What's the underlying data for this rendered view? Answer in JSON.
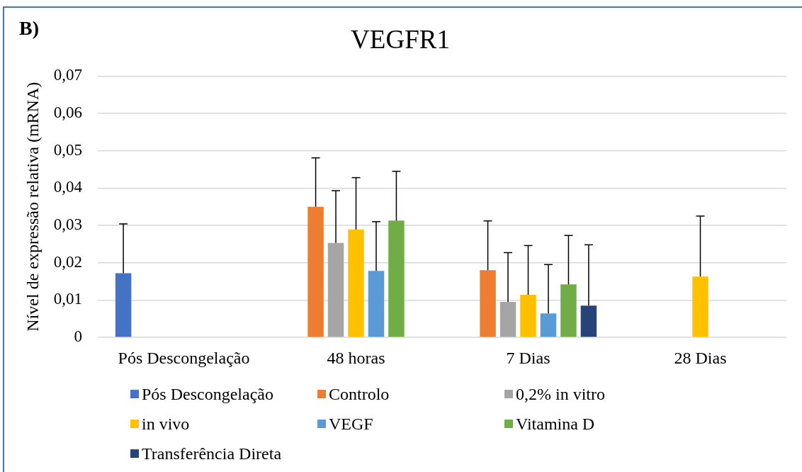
{
  "chart_data": {
    "type": "bar",
    "title": "VEGFR1",
    "ylabel": "Nível de expressão relativa (mRNA)",
    "annotations": [
      "B)"
    ],
    "categories": [
      "Pós Descongelação",
      "48 horas",
      "7 Dias",
      "28 Dias"
    ],
    "ylim": [
      0,
      0.07
    ],
    "yticks": [
      0,
      {
        "value": 0.01,
        "label": "0,01"
      },
      {
        "value": 0.02,
        "label": "0,02"
      },
      {
        "value": 0.03,
        "label": "0,03"
      },
      {
        "value": 0.04,
        "label": "0,04"
      },
      {
        "value": 0.05,
        "label": "0,05"
      },
      {
        "value": 0.06,
        "label": "0,06"
      },
      {
        "value": 0.07,
        "label": "0,07"
      }
    ],
    "grid": "y",
    "legend": "bottom",
    "series": [
      {
        "name": "Pós Descongelação",
        "color": "#4472c4",
        "values": [
          0.0172,
          null,
          null,
          null
        ],
        "errors": [
          [
            0.0172,
            0.0304
          ],
          null,
          null,
          null
        ]
      },
      {
        "name": "Controlo",
        "color": "#ed7d31",
        "values": [
          null,
          0.035,
          0.018,
          null
        ],
        "errors": [
          null,
          [
            0.035,
            0.0481
          ],
          [
            0.018,
            0.0312
          ],
          null
        ]
      },
      {
        "name": "0,2% in vitro",
        "color": "#a5a5a5",
        "values": [
          null,
          0.0253,
          0.0095,
          null
        ],
        "errors": [
          null,
          [
            0.0253,
            0.0393
          ],
          [
            0.0095,
            0.0227
          ],
          null
        ]
      },
      {
        "name": "in vivo",
        "color": "#ffc000",
        "values": [
          null,
          0.0289,
          0.0114,
          0.0163
        ],
        "errors": [
          null,
          [
            0.0289,
            0.0428
          ],
          [
            0.0114,
            0.0246
          ],
          [
            0.0163,
            0.0325
          ]
        ]
      },
      {
        "name": "VEGF",
        "color": "#5b9bd5",
        "values": [
          null,
          0.0178,
          0.0064,
          null
        ],
        "errors": [
          null,
          [
            0.0178,
            0.031
          ],
          [
            0.0064,
            0.0195
          ],
          null
        ]
      },
      {
        "name": "Vitamina D",
        "color": "#70ad47",
        "values": [
          null,
          0.0313,
          0.0142,
          null
        ],
        "errors": [
          null,
          [
            0.0313,
            0.0445
          ],
          [
            0.0142,
            0.0273
          ],
          null
        ]
      },
      {
        "name": "Transferência Direta",
        "color": "#264478",
        "values": [
          null,
          null,
          0.0085,
          null
        ],
        "errors": [
          null,
          null,
          [
            0.0085,
            0.0248
          ],
          null
        ]
      }
    ]
  }
}
